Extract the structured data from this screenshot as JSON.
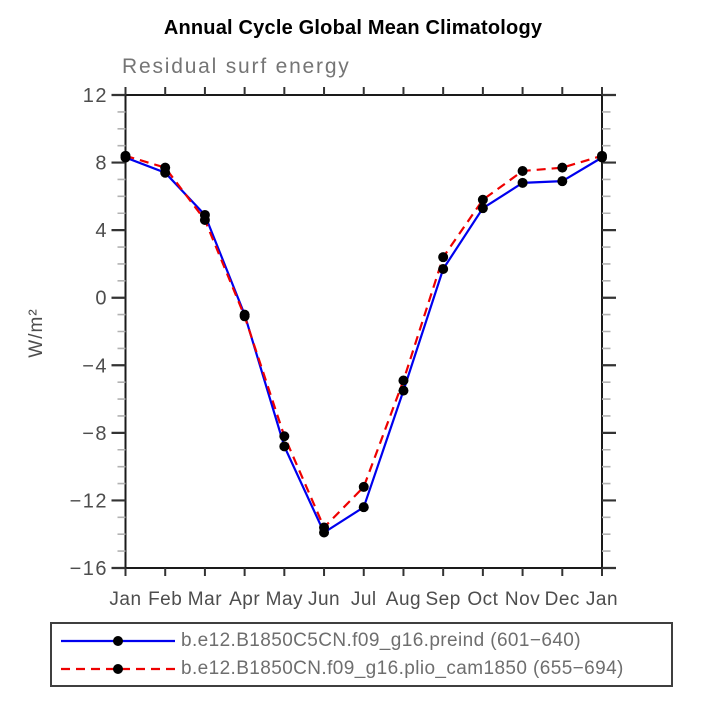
{
  "page": {
    "background": "#ffffff"
  },
  "chart_data": {
    "type": "line",
    "title": "Annual Cycle Global Mean Climatology",
    "subtitle": "Residual surf energy",
    "ylabel": "W/m²",
    "xlabel": "",
    "categories": [
      "Jan",
      "Feb",
      "Mar",
      "Apr",
      "May",
      "Jun",
      "Jul",
      "Aug",
      "Sep",
      "Oct",
      "Nov",
      "Dec",
      "Jan"
    ],
    "ylim": [
      -16,
      12
    ],
    "y_major_step": 4,
    "y_minor_step": 1,
    "y_ticklabels": [
      "12",
      "8",
      "4",
      "0",
      "−4",
      "−8",
      "−12",
      "−16"
    ],
    "grid": false,
    "legend_position": "bottom",
    "marker": {
      "shape": "circle",
      "color": "#000000"
    },
    "series": [
      {
        "name": "b.e12.B1850C5CN.f09_g16.preind (601−640)",
        "color": "#0000ee",
        "line_style": "solid",
        "values": [
          8.3,
          7.4,
          4.9,
          -1.0,
          -8.8,
          -13.9,
          -12.4,
          -5.5,
          1.7,
          5.3,
          6.8,
          6.9,
          8.3
        ]
      },
      {
        "name": "b.e12.B1850CN.f09_g16.plio_cam1850 (655−694)",
        "color": "#ee0000",
        "line_style": "dashed",
        "values": [
          8.4,
          7.7,
          4.6,
          -1.1,
          -8.2,
          -13.6,
          -11.2,
          -4.9,
          2.4,
          5.8,
          7.5,
          7.7,
          8.4
        ]
      }
    ]
  }
}
